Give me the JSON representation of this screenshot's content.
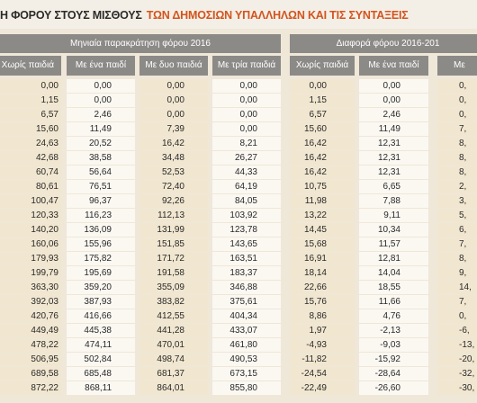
{
  "title": {
    "dark": "Η ΦΟΡΟΥ ΣΤΟΥΣ ΜΙΣΘΟΥΣ",
    "accent": "ΤΩΝ ΔΗΜΟΣΙΩΝ ΥΠΑΛΛΗΛΩΝ ΚΑΙ ΤΙΣ ΣΥΝΤΑΞΕΙΣ"
  },
  "table": {
    "groups": [
      "Μηνιαία παρακράτηση φόρου 2016",
      "Διαφορά φόρου 2016-201"
    ],
    "columns": [
      "Χωρίς παιδιά",
      "Με ένα παιδί",
      "Με δυο παιδιά",
      "Με τρία παιδιά",
      "Χωρίς παιδιά",
      "Με ένα παιδί",
      "Με"
    ],
    "rows": [
      [
        "0,00",
        "0,00",
        "0,00",
        "0,00",
        "0,00",
        "0,00",
        "0,"
      ],
      [
        "1,15",
        "0,00",
        "0,00",
        "0,00",
        "1,15",
        "0,00",
        "0,"
      ],
      [
        "6,57",
        "2,46",
        "0,00",
        "0,00",
        "6,57",
        "2,46",
        "0,"
      ],
      [
        "15,60",
        "11,49",
        "7,39",
        "0,00",
        "15,60",
        "11,49",
        "7,"
      ],
      [
        "24,63",
        "20,52",
        "16,42",
        "8,21",
        "16,42",
        "12,31",
        "8,"
      ],
      [
        "42,68",
        "38,58",
        "34,48",
        "26,27",
        "16,42",
        "12,31",
        "8,"
      ],
      [
        "60,74",
        "56,64",
        "52,53",
        "44,33",
        "16,42",
        "12,31",
        "8,"
      ],
      [
        "80,61",
        "76,51",
        "72,40",
        "64,19",
        "10,75",
        "6,65",
        "2,"
      ],
      [
        "100,47",
        "96,37",
        "92,26",
        "84,05",
        "11,98",
        "7,88",
        "3,"
      ],
      [
        "120,33",
        "116,23",
        "112,13",
        "103,92",
        "13,22",
        "9,11",
        "5,"
      ],
      [
        "140,20",
        "136,09",
        "131,99",
        "123,78",
        "14,45",
        "10,34",
        "6,"
      ],
      [
        "160,06",
        "155,96",
        "151,85",
        "143,65",
        "15,68",
        "11,57",
        "7,"
      ],
      [
        "179,93",
        "175,82",
        "171,72",
        "163,51",
        "16,91",
        "12,81",
        "8,"
      ],
      [
        "199,79",
        "195,69",
        "191,58",
        "183,37",
        "18,14",
        "14,04",
        "9,"
      ],
      [
        "363,30",
        "359,20",
        "355,09",
        "346,88",
        "22,66",
        "18,55",
        "14,"
      ],
      [
        "392,03",
        "387,93",
        "383,82",
        "375,61",
        "15,76",
        "11,66",
        "7,"
      ],
      [
        "420,76",
        "416,66",
        "412,55",
        "404,34",
        "8,86",
        "4,76",
        "0,"
      ],
      [
        "449,49",
        "445,38",
        "441,28",
        "433,07",
        "1,97",
        "-2,13",
        "-6,"
      ],
      [
        "478,22",
        "474,11",
        "470,01",
        "461,80",
        "-4,93",
        "-9,03",
        "-13,"
      ],
      [
        "506,95",
        "502,84",
        "498,74",
        "490,53",
        "-11,82",
        "-15,92",
        "-20,"
      ],
      [
        "689,58",
        "685,48",
        "681,37",
        "673,15",
        "-24,54",
        "-28,64",
        "-32,"
      ],
      [
        "872,22",
        "868,11",
        "864,01",
        "855,80",
        "-22,49",
        "-26,60",
        "-30,"
      ]
    ]
  }
}
